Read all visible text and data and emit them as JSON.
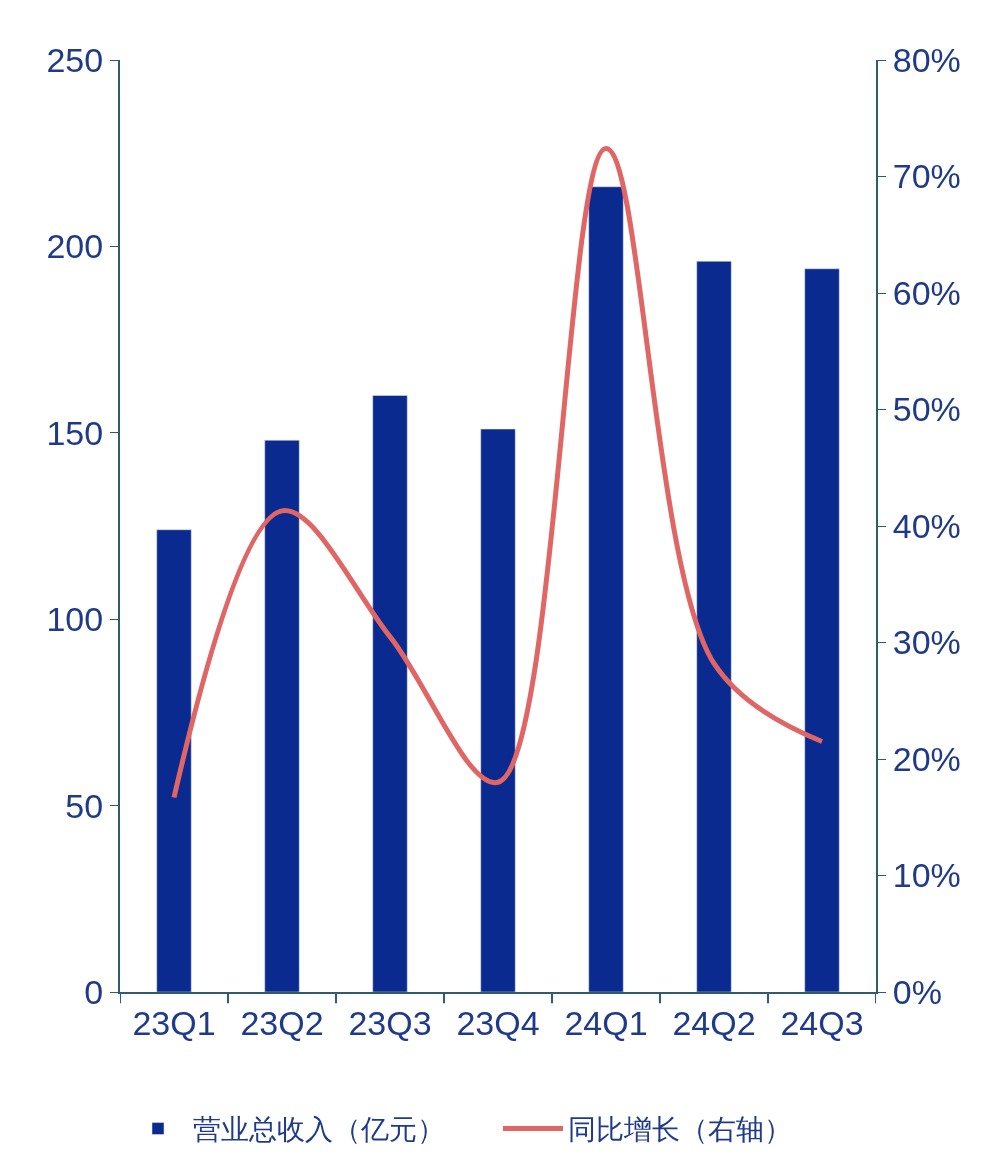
{
  "chart_data": {
    "type": "bar",
    "categories": [
      "23Q1",
      "23Q2",
      "23Q3",
      "23Q4",
      "24Q1",
      "24Q2",
      "24Q3"
    ],
    "series": [
      {
        "name": "营业总收入（亿元）",
        "color": "#0b2a8f",
        "values": [
          124,
          148,
          160,
          151,
          216,
          196,
          194
        ]
      },
      {
        "name": "同比增长（右轴）",
        "type": "line",
        "axis": "y2",
        "color": "#e06666",
        "values": [
          16.7,
          41.3,
          30.5,
          18,
          72.4,
          28.2,
          21.5
        ]
      }
    ],
    "ylim": [
      0,
      250
    ],
    "yticks": [
      0,
      50,
      100,
      150,
      200,
      250
    ],
    "y2lim": [
      0,
      80
    ],
    "y2ticks": [
      {
        "value": 0,
        "label": "0%"
      },
      {
        "value": 10,
        "label": "10%"
      },
      {
        "value": 20,
        "label": "20%"
      },
      {
        "value": 30,
        "label": "30%"
      },
      {
        "value": 40,
        "label": "40%"
      },
      {
        "value": 50,
        "label": "50%"
      },
      {
        "value": 60,
        "label": "60%"
      },
      {
        "value": 70,
        "label": "70%"
      },
      {
        "value": 80,
        "label": "80%"
      }
    ],
    "legend": "bottom",
    "marker": "none",
    "line_style": "solid"
  }
}
